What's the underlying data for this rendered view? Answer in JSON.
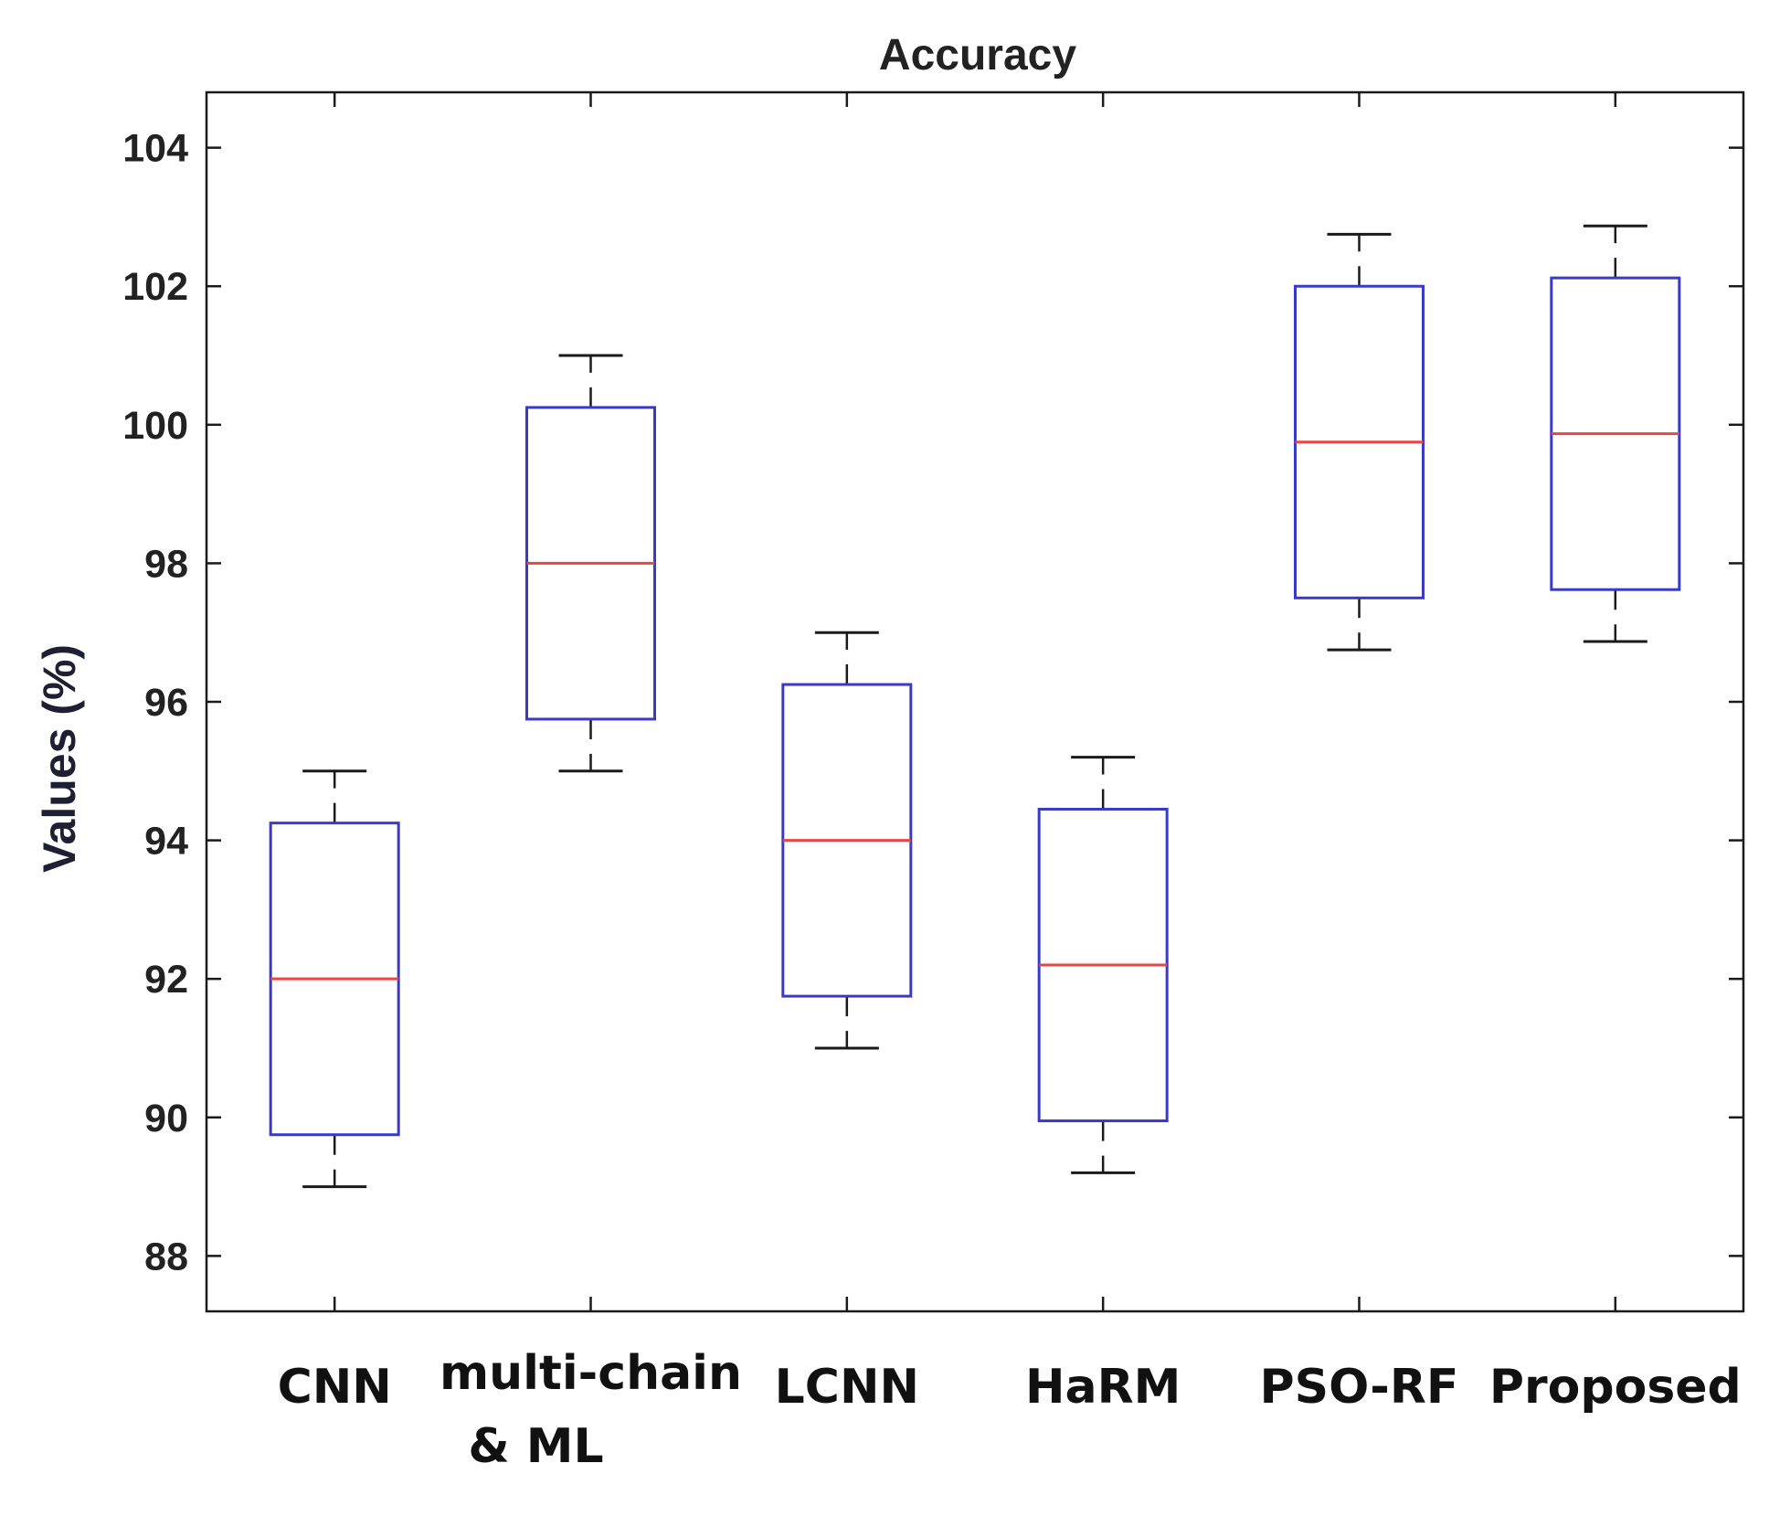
{
  "chart_data": {
    "type": "boxplot",
    "title": "Accuracy",
    "xlabel": "",
    "ylabel": "Values (%)",
    "ylim": [
      87.2,
      104.8
    ],
    "yticks": [
      88,
      90,
      92,
      94,
      96,
      98,
      100,
      102,
      104
    ],
    "categories": [
      [
        "CNN"
      ],
      [
        "multi-chain",
        "& ML"
      ],
      [
        "LCNN"
      ],
      [
        "HaRM"
      ],
      [
        "PSO-RF"
      ],
      [
        "Proposed"
      ]
    ],
    "boxes": [
      {
        "name": "CNN",
        "whisker_low": 89.0,
        "q1": 89.75,
        "median": 92.0,
        "q3": 94.25,
        "whisker_high": 95.0
      },
      {
        "name": "multi-chain & ML",
        "whisker_low": 95.0,
        "q1": 95.75,
        "median": 98.0,
        "q3": 100.25,
        "whisker_high": 101.0
      },
      {
        "name": "LCNN",
        "whisker_low": 91.0,
        "q1": 91.75,
        "median": 94.0,
        "q3": 96.25,
        "whisker_high": 97.0
      },
      {
        "name": "HaRM",
        "whisker_low": 89.2,
        "q1": 89.95,
        "median": 92.2,
        "q3": 94.45,
        "whisker_high": 95.2
      },
      {
        "name": "PSO-RF",
        "whisker_low": 96.75,
        "q1": 97.5,
        "median": 99.75,
        "q3": 102.0,
        "whisker_high": 102.75
      },
      {
        "name": "Proposed",
        "whisker_low": 96.87,
        "q1": 97.62,
        "median": 99.87,
        "q3": 102.12,
        "whisker_high": 102.87
      }
    ],
    "colors": {
      "box": "#3a3ac8",
      "median": "#e64646",
      "whisker": "#1a1a1a",
      "axes": "#1a1a1a",
      "ylabel": "#1f1f33"
    },
    "grid": false
  }
}
